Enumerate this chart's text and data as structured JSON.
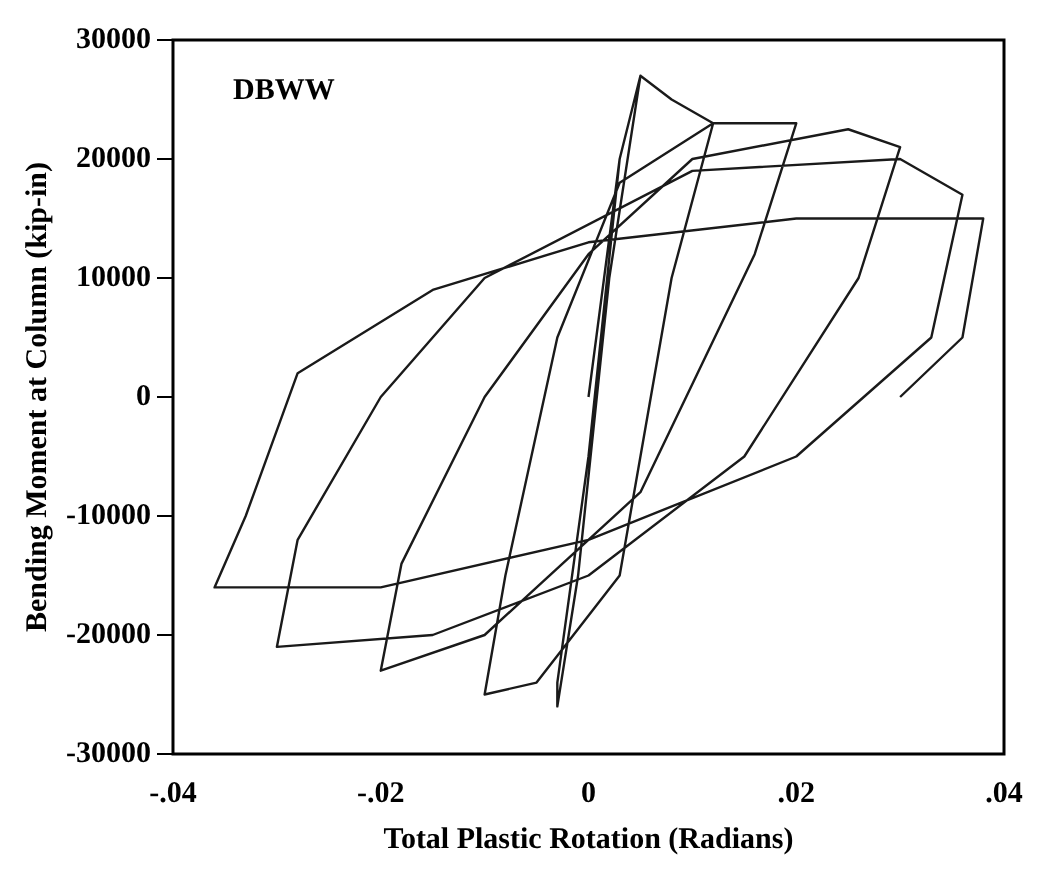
{
  "chart_data": {
    "type": "line",
    "xlabel": "Total Plastic Rotation (Radians)",
    "ylabel": "Bending Moment at Column (kip-in)",
    "annotations": [
      "DBWW"
    ],
    "x": [
      0,
      0.003,
      0.005,
      0.003,
      0,
      -0.003,
      -0.003,
      -0.001,
      0.002,
      0.005,
      0.008,
      0.012,
      0.008,
      0.003,
      -0.005,
      -0.01,
      -0.008,
      -0.003,
      0.003,
      0.012,
      0.02,
      0.016,
      0.005,
      -0.01,
      -0.02,
      -0.018,
      -0.01,
      0,
      0.01,
      0.025,
      0.03,
      0.026,
      0.015,
      0,
      -0.015,
      -0.03,
      -0.028,
      -0.02,
      -0.01,
      0.01,
      0.03,
      0.036,
      0.033,
      0.02,
      0,
      -0.02,
      -0.036,
      -0.033,
      -0.028,
      -0.015,
      0,
      0.02,
      0.038,
      0.036,
      0.03
    ],
    "series": [
      {
        "color": "#1a1a1a",
        "values": [
          0,
          20000,
          27000,
          20000,
          -5000,
          -24000,
          -26000,
          -15000,
          10000,
          27000,
          25000,
          23000,
          10000,
          -15000,
          -24000,
          -25000,
          -15000,
          5000,
          18000,
          23000,
          23000,
          12000,
          -8000,
          -20000,
          -23000,
          -14000,
          0,
          12000,
          20000,
          22500,
          21000,
          10000,
          -5000,
          -15000,
          -20000,
          -21000,
          -12000,
          0,
          10000,
          19000,
          20000,
          17000,
          5000,
          -5000,
          -12000,
          -16000,
          -16000,
          -10000,
          2000,
          9000,
          13000,
          15000,
          15000,
          5000,
          0
        ]
      }
    ],
    "xlim": [
      -0.04,
      0.04
    ],
    "xticks": [
      {
        "value": -0.04,
        "label": "-.04"
      },
      {
        "value": -0.02,
        "label": "-.02"
      },
      0,
      {
        "value": 0.02,
        "label": ".02"
      },
      {
        "value": 0.04,
        "label": ".04"
      }
    ],
    "ylim": [
      -30000,
      30000
    ],
    "yticks": [
      -30000,
      -20000,
      -10000,
      0,
      10000,
      20000,
      30000
    ],
    "grid": false,
    "legend": false,
    "marker": "none",
    "line_style": "solid"
  }
}
